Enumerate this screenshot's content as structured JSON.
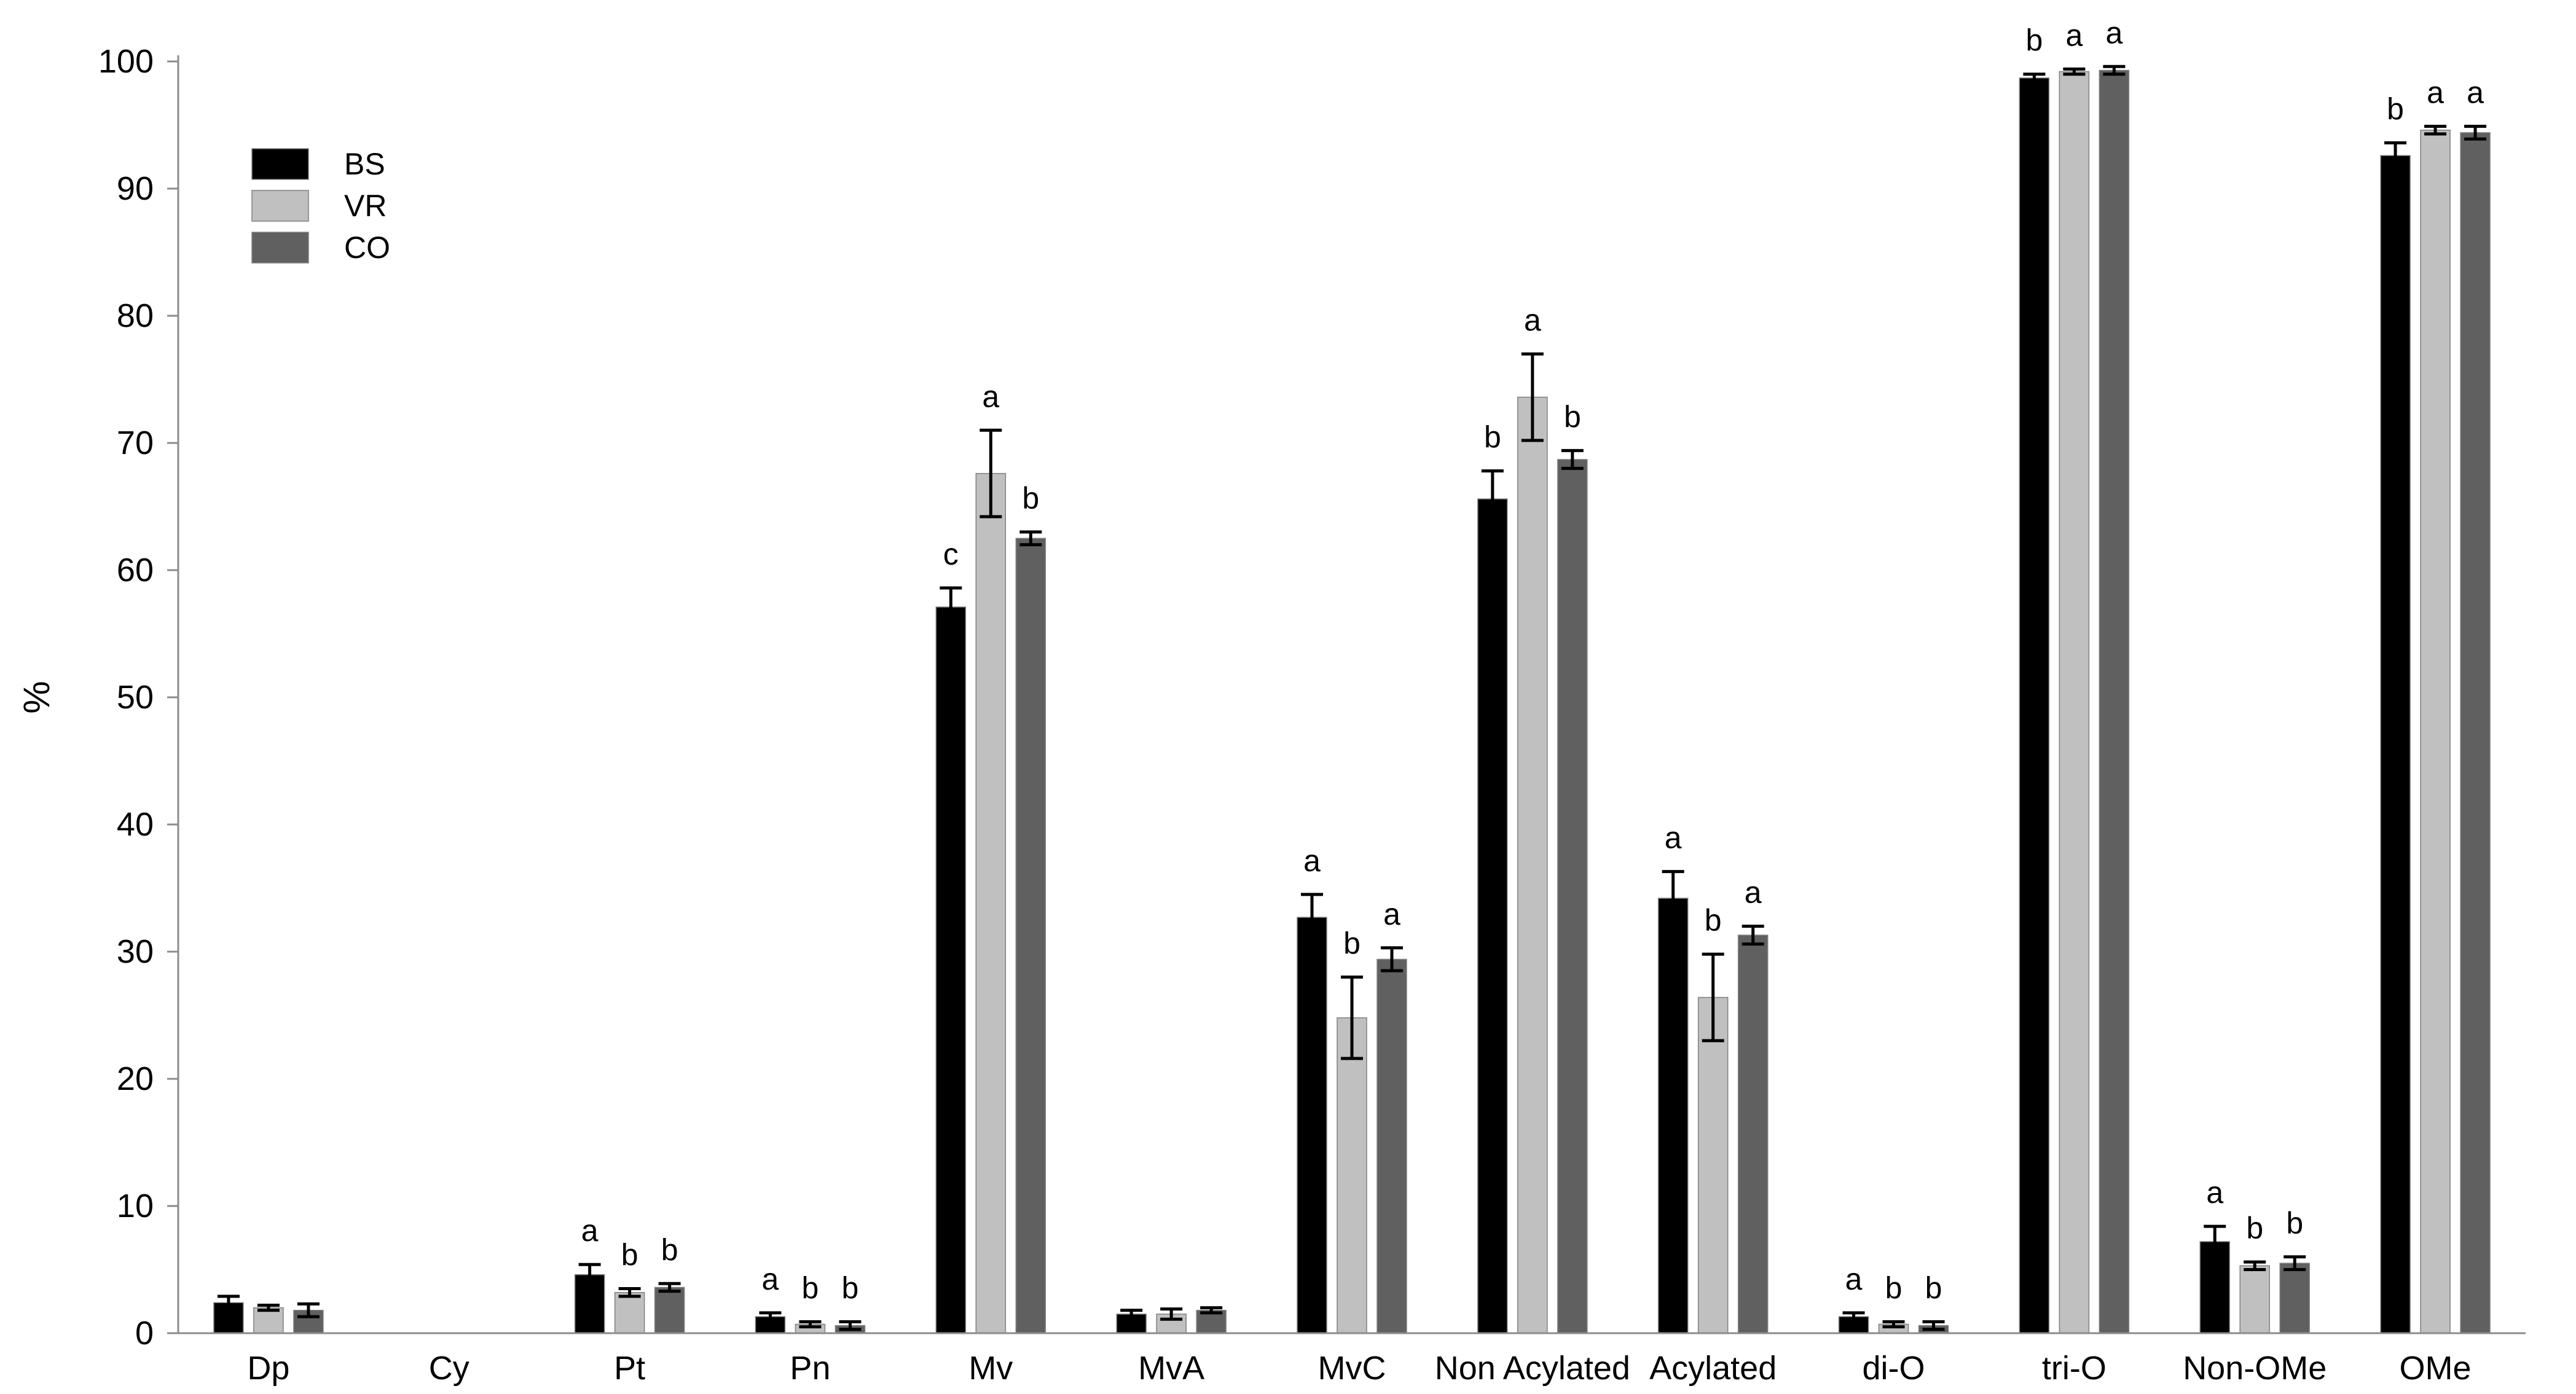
{
  "chart_data": {
    "type": "bar",
    "title": "",
    "xlabel": "",
    "ylabel": "%",
    "ylim": [
      0,
      100
    ],
    "yticks": [
      "0",
      "10",
      "20",
      "30",
      "40",
      "50",
      "60",
      "70",
      "80",
      "90",
      "100"
    ],
    "grid": false,
    "legend_position": "top-left",
    "categories": [
      "Dp",
      "Cy",
      "Pt",
      "Pn",
      "Mv",
      "MvA",
      "MvC",
      "Non Acylated",
      "Acylated",
      "di-O",
      "tri-O",
      "Non-OMe",
      "OMe"
    ],
    "series": [
      {
        "name": "BS",
        "color": "#000000",
        "values": [
          2.4,
          0,
          4.6,
          1.3,
          57.1,
          1.5,
          32.7,
          65.6,
          34.2,
          1.3,
          98.7,
          7.2,
          92.6
        ],
        "errors": [
          0.5,
          0,
          0.8,
          0.3,
          1.5,
          0.3,
          1.8,
          2.2,
          2.1,
          0.3,
          0.3,
          1.2,
          1.0
        ],
        "labels": [
          "",
          "",
          "a",
          "a",
          "c",
          "",
          "a",
          "b",
          "a",
          "a",
          "b",
          "a",
          "b"
        ]
      },
      {
        "name": "VR",
        "color": "#c0c0c0",
        "values": [
          2.0,
          0,
          3.2,
          0.7,
          67.6,
          1.5,
          24.8,
          73.6,
          26.4,
          0.7,
          99.2,
          5.3,
          94.6
        ],
        "errors": [
          0.2,
          0,
          0.3,
          0.2,
          3.4,
          0.4,
          3.2,
          3.4,
          3.4,
          0.2,
          0.2,
          0.3,
          0.3
        ],
        "labels": [
          "",
          "",
          "b",
          "b",
          "a",
          "",
          "b",
          "a",
          "b",
          "b",
          "a",
          "b",
          "a"
        ]
      },
      {
        "name": "CO",
        "color": "#606060",
        "values": [
          1.8,
          0,
          3.6,
          0.6,
          62.5,
          1.8,
          29.4,
          68.7,
          31.3,
          0.6,
          99.3,
          5.5,
          94.4
        ],
        "errors": [
          0.5,
          0,
          0.3,
          0.3,
          0.5,
          0.2,
          0.9,
          0.7,
          0.7,
          0.3,
          0.3,
          0.5,
          0.5
        ],
        "labels": [
          "",
          "",
          "b",
          "b",
          "b",
          "",
          "a",
          "b",
          "a",
          "b",
          "a",
          "b",
          "a"
        ]
      }
    ]
  }
}
